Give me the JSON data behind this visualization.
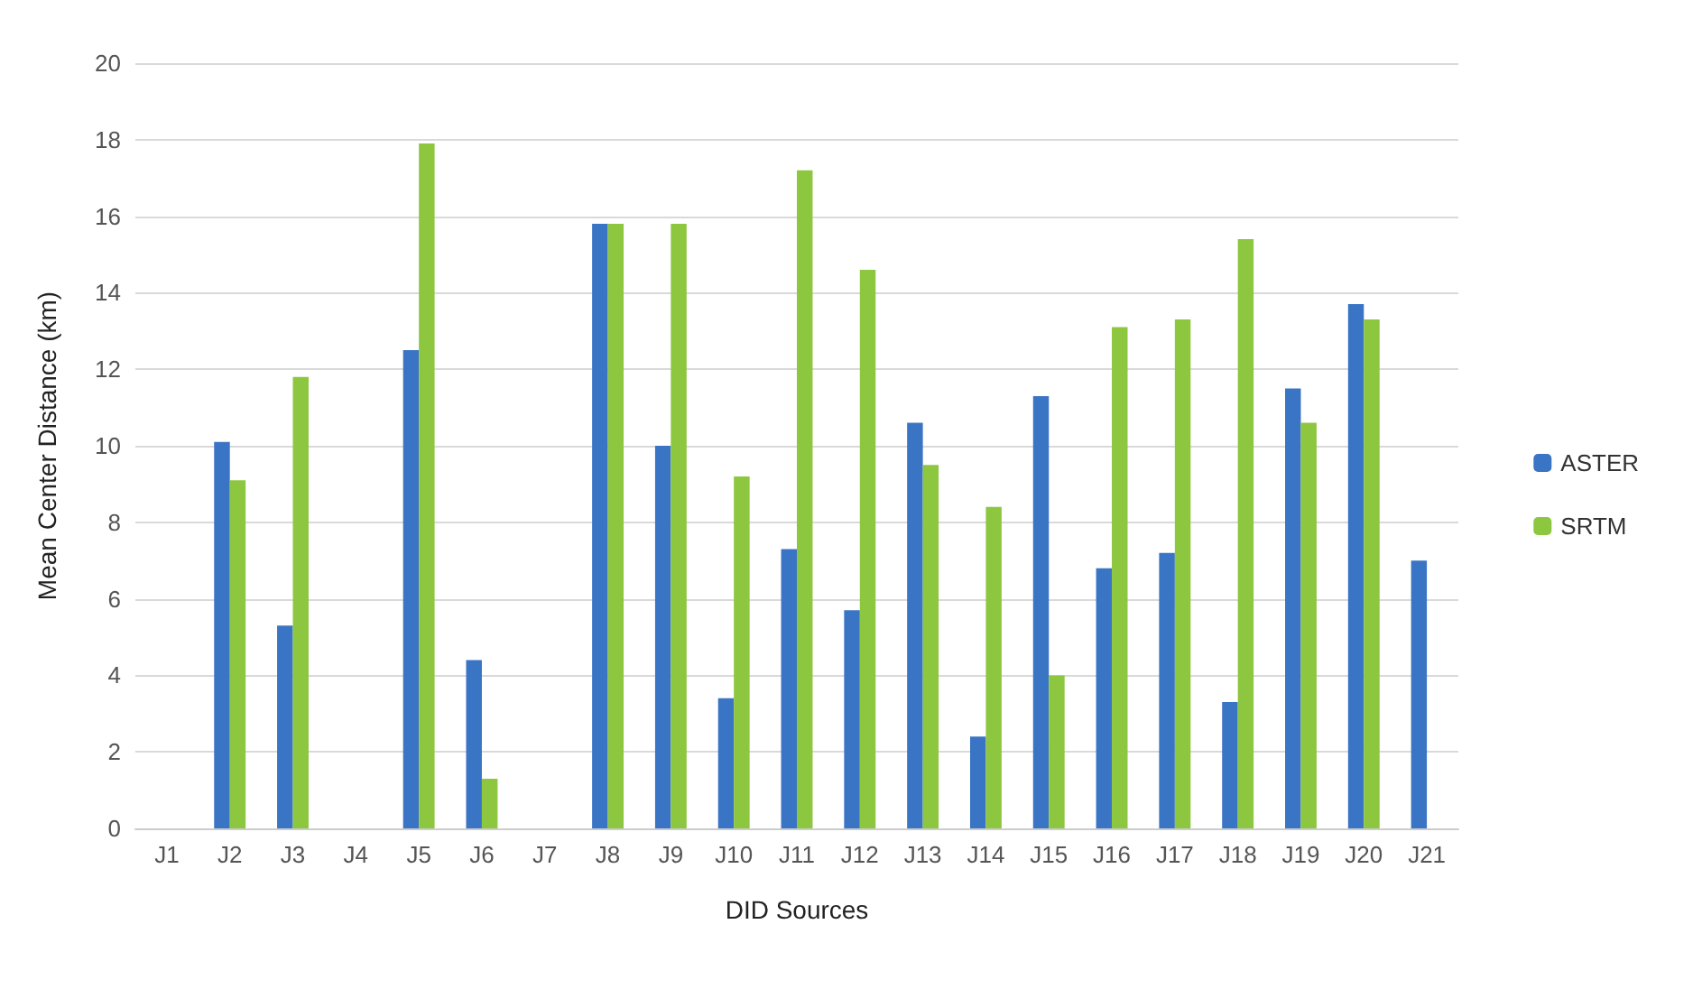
{
  "chart_data": {
    "type": "bar",
    "xlabel": "DID Sources",
    "ylabel": "Mean Center Distance (km)",
    "categories": [
      "J1",
      "J2",
      "J3",
      "J4",
      "J5",
      "J6",
      "J7",
      "J8",
      "J9",
      "J10",
      "J11",
      "J12",
      "J13",
      "J14",
      "J15",
      "J16",
      "J17",
      "J18",
      "J19",
      "J20",
      "J21"
    ],
    "series": [
      {
        "name": "ASTER",
        "color": "#3a74c4",
        "values": [
          null,
          10.1,
          5.3,
          null,
          12.5,
          4.4,
          null,
          15.8,
          10.0,
          3.4,
          7.3,
          5.7,
          10.6,
          2.4,
          11.3,
          6.8,
          7.2,
          3.3,
          11.5,
          13.7,
          7.0
        ]
      },
      {
        "name": "SRTM",
        "color": "#8dc63f",
        "values": [
          null,
          9.1,
          11.8,
          null,
          17.9,
          1.3,
          null,
          15.8,
          15.8,
          9.2,
          17.2,
          14.6,
          9.5,
          8.4,
          4.0,
          13.1,
          13.3,
          15.4,
          10.6,
          13.3,
          null
        ]
      }
    ],
    "ylim": [
      0,
      20
    ],
    "yticks": [
      0,
      2,
      4,
      6,
      8,
      10,
      12,
      14,
      16,
      18,
      20
    ],
    "grid": "y",
    "legend": "right"
  }
}
